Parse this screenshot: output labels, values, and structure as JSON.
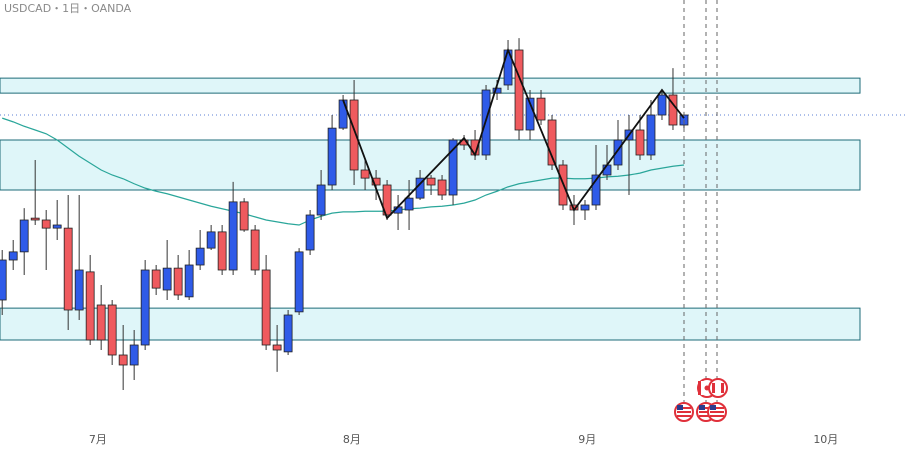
{
  "chart_data": {
    "type": "candlestick",
    "title": "USDCAD・1日・OANDA",
    "up_color": "#2f5be8",
    "down_color": "#ef5a5e",
    "ma_color": "#2aa69a",
    "zone_color": "#dff6f9",
    "xlim": [
      -0.2,
      82.1
    ],
    "ylim": [
      1.3012,
      1.37
    ],
    "xticks": [
      {
        "value": 8.7,
        "label": "7月"
      },
      {
        "value": 31.8,
        "label": "8月"
      },
      {
        "value": 53.2,
        "label": "9月"
      },
      {
        "value": 74.9,
        "label": "10月"
      }
    ],
    "open": [
      1.322,
      1.3284,
      1.3297,
      1.3351,
      1.3348,
      1.3335,
      1.3335,
      1.3204,
      1.3265,
      1.3212,
      1.3212,
      1.3132,
      1.3116,
      1.3148,
      1.3268,
      1.3236,
      1.3271,
      1.3225,
      1.3276,
      1.3303,
      1.3329,
      1.3268,
      1.3377,
      1.3332,
      1.3268,
      1.3148,
      1.3137,
      1.3201,
      1.33,
      1.3356,
      1.3404,
      1.3495,
      1.354,
      1.3428,
      1.3415,
      1.3404,
      1.3359,
      1.3364,
      1.3383,
      1.3415,
      1.3412,
      1.3388,
      1.3476,
      1.3476,
      1.3452,
      1.3551,
      1.3564,
      1.362,
      1.3492,
      1.3543,
      1.3508,
      1.3436,
      1.3372,
      1.3364,
      1.3372,
      1.342,
      1.3436,
      1.3476,
      1.3492,
      1.3452,
      1.3516,
      1.3548,
      1.35
    ],
    "high": [
      1.33,
      1.3316,
      1.3367,
      1.3444,
      1.3364,
      1.338,
      1.3388,
      1.3388,
      1.3292,
      1.3244,
      1.322,
      1.318,
      1.3172,
      1.3284,
      1.3276,
      1.3316,
      1.3292,
      1.33,
      1.3332,
      1.334,
      1.334,
      1.3409,
      1.3383,
      1.334,
      1.3292,
      1.318,
      1.3204,
      1.3303,
      1.3364,
      1.3428,
      1.3516,
      1.3548,
      1.3572,
      1.3444,
      1.3428,
      1.3412,
      1.3388,
      1.3412,
      1.3428,
      1.342,
      1.342,
      1.3479,
      1.3484,
      1.3492,
      1.3564,
      1.3572,
      1.3636,
      1.3639,
      1.3556,
      1.3556,
      1.3516,
      1.3444,
      1.3388,
      1.338,
      1.3468,
      1.3468,
      1.3508,
      1.3516,
      1.3516,
      1.354,
      1.3556,
      1.3591,
      1.3521
    ],
    "low": [
      1.3196,
      1.3268,
      1.326,
      1.334,
      1.3268,
      1.3316,
      1.3172,
      1.3188,
      1.3148,
      1.314,
      1.3116,
      1.3076,
      1.3092,
      1.314,
      1.3228,
      1.322,
      1.322,
      1.322,
      1.3268,
      1.33,
      1.326,
      1.326,
      1.3329,
      1.326,
      1.314,
      1.3105,
      1.3132,
      1.3196,
      1.3292,
      1.3348,
      1.3396,
      1.3492,
      1.3404,
      1.3396,
      1.338,
      1.3348,
      1.3332,
      1.3332,
      1.338,
      1.3388,
      1.338,
      1.3372,
      1.346,
      1.3444,
      1.3444,
      1.354,
      1.3556,
      1.3476,
      1.3476,
      1.35,
      1.3428,
      1.3364,
      1.334,
      1.3348,
      1.3364,
      1.3412,
      1.3428,
      1.3388,
      1.3444,
      1.3444,
      1.3508,
      1.3492,
      1.3495
    ],
    "close": [
      1.3284,
      1.3297,
      1.3348,
      1.3348,
      1.3335,
      1.334,
      1.3204,
      1.3268,
      1.3156,
      1.3156,
      1.3132,
      1.3116,
      1.3148,
      1.3268,
      1.3239,
      1.3271,
      1.3228,
      1.3276,
      1.3303,
      1.3329,
      1.3268,
      1.3377,
      1.3332,
      1.3268,
      1.3148,
      1.314,
      1.3196,
      1.3297,
      1.3356,
      1.3404,
      1.3495,
      1.354,
      1.3428,
      1.3415,
      1.3404,
      1.3356,
      1.3369,
      1.3383,
      1.3415,
      1.3404,
      1.3388,
      1.3476,
      1.3468,
      1.3452,
      1.3556,
      1.3559,
      1.362,
      1.3492,
      1.3543,
      1.3508,
      1.3436,
      1.3372,
      1.3364,
      1.3372,
      1.342,
      1.3436,
      1.3476,
      1.3492,
      1.3452,
      1.3516,
      1.3548,
      1.35,
      1.3516
    ],
    "ma": [
      1.3511,
      1.3505,
      1.3498,
      1.3492,
      1.3486,
      1.3476,
      1.3463,
      1.345,
      1.3439,
      1.3428,
      1.342,
      1.3414,
      1.3406,
      1.3399,
      1.3394,
      1.339,
      1.3385,
      1.338,
      1.3375,
      1.337,
      1.3366,
      1.3362,
      1.3358,
      1.3353,
      1.3348,
      1.3345,
      1.3342,
      1.334,
      1.3348,
      1.3354,
      1.3359,
      1.3361,
      1.3361,
      1.3362,
      1.3362,
      1.3362,
      1.3364,
      1.3366,
      1.3367,
      1.3369,
      1.337,
      1.3372,
      1.3375,
      1.338,
      1.3388,
      1.3394,
      1.3401,
      1.3406,
      1.3409,
      1.3412,
      1.3415,
      1.3415,
      1.3414,
      1.3414,
      1.3415,
      1.3417,
      1.3418,
      1.342,
      1.3423,
      1.3428,
      1.3431,
      1.3434,
      1.3436
    ],
    "zigzag": {
      "x": [
        31,
        35,
        42,
        43,
        46,
        52,
        60,
        62
      ],
      "values": [
        1.354,
        1.3351,
        1.3479,
        1.3452,
        1.362,
        1.3364,
        1.3556,
        1.3511
      ]
    },
    "zones": [
      {
        "low": 1.3551,
        "high": 1.3575
      },
      {
        "low": 1.3396,
        "high": 1.3476
      },
      {
        "low": 1.3156,
        "high": 1.3207
      }
    ],
    "price_line": 1.3516
  }
}
